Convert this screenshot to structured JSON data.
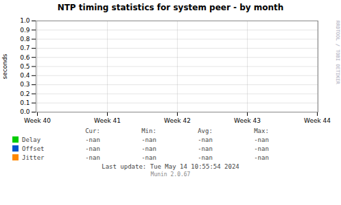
{
  "chart_data": {
    "type": "line",
    "title": "NTP timing statistics for system peer - by month",
    "y_label": "seconds",
    "categories": [
      "Week 40",
      "Week 41",
      "Week 42",
      "Week 43",
      "Week 44"
    ],
    "series": [
      {
        "name": "Delay",
        "color": "#00cc00",
        "values": [
          null,
          null,
          null,
          null,
          null
        ],
        "legend_values": [
          "-nan",
          "-nan",
          "-nan",
          "-nan"
        ]
      },
      {
        "name": "Offset",
        "color": "#0055cc",
        "values": [
          null,
          null,
          null,
          null,
          null
        ],
        "legend_values": [
          "-nan",
          "-nan",
          "-nan",
          "-nan"
        ]
      },
      {
        "name": "Jitter",
        "color": "#ff8800",
        "values": [
          null,
          null,
          null,
          null,
          null
        ],
        "legend_values": [
          "-nan",
          "-nan",
          "-nan",
          "-nan"
        ]
      }
    ],
    "legend_columns": [
      "Cur:",
      "Min:",
      "Avg:",
      "Max:"
    ],
    "ylim": [
      0.0,
      1.0
    ],
    "yticks": [
      {
        "value": 0.0,
        "label": "0.0"
      },
      {
        "value": 0.1,
        "label": "0.1"
      },
      {
        "value": 0.2,
        "label": "0.2"
      },
      {
        "value": 0.3,
        "label": "0.3"
      },
      {
        "value": 0.4,
        "label": "0.4"
      },
      {
        "value": 0.5,
        "label": "0.5"
      },
      {
        "value": 0.6,
        "label": "0.6"
      },
      {
        "value": 0.7,
        "label": "0.7"
      },
      {
        "value": 0.8,
        "label": "0.8"
      },
      {
        "value": 0.9,
        "label": "0.9"
      },
      {
        "value": 1.0,
        "label": "1.0"
      }
    ],
    "grid": true,
    "legend": "bottom",
    "annotations": [
      "Last update: Tue May 14 10:55:54 2024",
      "Munin 2.0.67",
      "RRDTOOL / TOBI OETIKER"
    ]
  }
}
